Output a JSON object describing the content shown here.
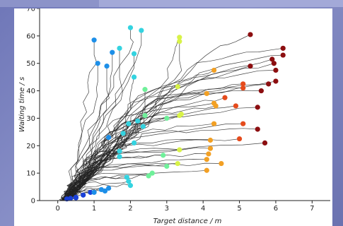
{
  "chart_data": {
    "type": "line",
    "xlabel": "Target distance / m",
    "ylabel": "Waiting time / s",
    "xlim": [
      -0.5,
      7.5
    ],
    "ylim": [
      0,
      70
    ],
    "xticks": [
      0,
      1,
      2,
      3,
      4,
      5,
      6,
      7
    ],
    "yticks": [
      0,
      10,
      20,
      30,
      40,
      50,
      60,
      70
    ],
    "line_color": "#222222",
    "colormap": [
      "#1a40d8",
      "#1d8fe8",
      "#34d3e0",
      "#6ff09a",
      "#d8f248",
      "#f2a024",
      "#e54b1c",
      "#8c0e10"
    ],
    "endpoints": [
      {
        "x": 1.0,
        "y": 58.5
      },
      {
        "x": 2.0,
        "y": 63
      },
      {
        "x": 2.3,
        "y": 62
      },
      {
        "x": 1.5,
        "y": 54
      },
      {
        "x": 1.7,
        "y": 55.5
      },
      {
        "x": 2.1,
        "y": 53.5
      },
      {
        "x": 1.1,
        "y": 50
      },
      {
        "x": 1.35,
        "y": 49
      },
      {
        "x": 3.35,
        "y": 59.5
      },
      {
        "x": 3.35,
        "y": 58
      },
      {
        "x": 5.3,
        "y": 60.5
      },
      {
        "x": 6.2,
        "y": 55.5
      },
      {
        "x": 6.2,
        "y": 53
      },
      {
        "x": 5.9,
        "y": 51.5
      },
      {
        "x": 5.95,
        "y": 50
      },
      {
        "x": 6.0,
        "y": 47.5
      },
      {
        "x": 5.3,
        "y": 49
      },
      {
        "x": 4.3,
        "y": 47.5
      },
      {
        "x": 2.1,
        "y": 45
      },
      {
        "x": 2.4,
        "y": 40.5
      },
      {
        "x": 3.3,
        "y": 41.5
      },
      {
        "x": 5.1,
        "y": 42.5
      },
      {
        "x": 5.1,
        "y": 41
      },
      {
        "x": 5.8,
        "y": 42.5
      },
      {
        "x": 6.0,
        "y": 43.5
      },
      {
        "x": 5.6,
        "y": 40
      },
      {
        "x": 4.1,
        "y": 39
      },
      {
        "x": 4.6,
        "y": 37.5
      },
      {
        "x": 4.3,
        "y": 35.5
      },
      {
        "x": 4.35,
        "y": 34.5
      },
      {
        "x": 4.9,
        "y": 34.5
      },
      {
        "x": 5.5,
        "y": 34
      },
      {
        "x": 2.4,
        "y": 31
      },
      {
        "x": 3.4,
        "y": 31.5
      },
      {
        "x": 3.35,
        "y": 31
      },
      {
        "x": 3.0,
        "y": 30
      },
      {
        "x": 2.2,
        "y": 29
      },
      {
        "x": 2.35,
        "y": 27
      },
      {
        "x": 1.95,
        "y": 28
      },
      {
        "x": 1.8,
        "y": 24.5
      },
      {
        "x": 1.4,
        "y": 23
      },
      {
        "x": 4.3,
        "y": 28
      },
      {
        "x": 5.1,
        "y": 28
      },
      {
        "x": 5.5,
        "y": 26
      },
      {
        "x": 4.2,
        "y": 22
      },
      {
        "x": 5.0,
        "y": 22.5
      },
      {
        "x": 5.7,
        "y": 21
      },
      {
        "x": 2.1,
        "y": 21
      },
      {
        "x": 4.2,
        "y": 19
      },
      {
        "x": 4.15,
        "y": 17
      },
      {
        "x": 1.7,
        "y": 18
      },
      {
        "x": 3.35,
        "y": 18.5
      },
      {
        "x": 2.9,
        "y": 16.5
      },
      {
        "x": 1.7,
        "y": 16
      },
      {
        "x": 4.5,
        "y": 13.5
      },
      {
        "x": 4.1,
        "y": 15
      },
      {
        "x": 3.3,
        "y": 13.5
      },
      {
        "x": 3.0,
        "y": 12.5
      },
      {
        "x": 4.1,
        "y": 11
      },
      {
        "x": 2.6,
        "y": 10
      },
      {
        "x": 2.5,
        "y": 9
      },
      {
        "x": 1.9,
        "y": 8.5
      },
      {
        "x": 1.95,
        "y": 7
      },
      {
        "x": 2.0,
        "y": 5.5
      },
      {
        "x": 1.4,
        "y": 4.5
      },
      {
        "x": 1.3,
        "y": 3.5
      },
      {
        "x": 0.9,
        "y": 3
      },
      {
        "x": 0.7,
        "y": 2
      },
      {
        "x": 0.5,
        "y": 1.2
      },
      {
        "x": 0.35,
        "y": 0.8
      },
      {
        "x": 0.25,
        "y": 0.6
      },
      {
        "x": 0.5,
        "y": 1.0
      },
      {
        "x": 1.0,
        "y": 3.0
      },
      {
        "x": 1.2,
        "y": 4.0
      }
    ]
  }
}
